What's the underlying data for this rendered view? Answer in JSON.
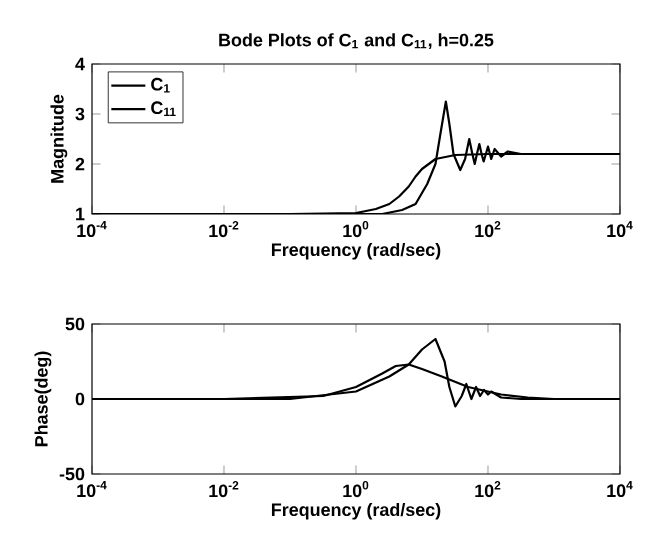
{
  "chart_data": [
    {
      "type": "line",
      "title": "Bode Plots of C$_{1}$ and C$_{11}$, h=0.25",
      "xlabel": "Frequency (rad/sec)",
      "ylabel": "Magnitude",
      "log": "x",
      "legend": "top left",
      "grid": false,
      "xlim": [
        0.0001,
        10000
      ],
      "ylim": [
        1,
        4
      ],
      "xticks": [
        {
          "value": 0.0001,
          "label": "10$^{-4}$"
        },
        {
          "value": 0.01,
          "label": "10$^{-2}$"
        },
        {
          "value": 1,
          "label": "10$^{0}$"
        },
        {
          "value": 100,
          "label": "10$^{2}$"
        },
        {
          "value": 10000,
          "label": "10$^{4}$"
        }
      ],
      "yticks": [
        1,
        2,
        3,
        4
      ],
      "series": [
        {
          "name": "C$_{1}$",
          "color": "#000000",
          "x": [
            0.0001,
            1,
            2.5,
            5,
            8,
            12,
            16,
            19,
            23,
            26,
            30,
            38,
            45,
            52,
            58,
            63,
            68,
            74,
            80,
            86,
            93,
            100,
            112,
            126,
            158,
            200,
            316,
            1000,
            10000
          ],
          "values": [
            1,
            1,
            1,
            1.08,
            1.2,
            1.6,
            2.0,
            2.6,
            3.25,
            2.8,
            2.2,
            1.88,
            2.1,
            2.5,
            2.2,
            2.0,
            2.2,
            2.4,
            2.2,
            2.05,
            2.2,
            2.35,
            2.1,
            2.3,
            2.15,
            2.25,
            2.2,
            2.2,
            2.2
          ]
        },
        {
          "name": "C$_{11}$",
          "color": "#000000",
          "x": [
            0.0001,
            0.1,
            1,
            2,
            3.2,
            4.5,
            6.3,
            8,
            10,
            16,
            32,
            100,
            1000,
            10000
          ],
          "values": [
            1,
            1,
            1.02,
            1.1,
            1.2,
            1.35,
            1.55,
            1.75,
            1.9,
            2.1,
            2.18,
            2.2,
            2.2,
            2.2
          ]
        }
      ]
    },
    {
      "type": "line",
      "xlabel": "Frequency (rad/sec)",
      "ylabel": "Phase(deg)",
      "log": "x",
      "legend": false,
      "grid": false,
      "xlim": [
        0.0001,
        10000
      ],
      "ylim": [
        -50,
        50
      ],
      "xticks": [
        {
          "value": 0.0001,
          "label": "10$^{-4}$"
        },
        {
          "value": 0.01,
          "label": "10$^{-2}$"
        },
        {
          "value": 1,
          "label": "10$^{0}$"
        },
        {
          "value": 100,
          "label": "10$^{2}$"
        },
        {
          "value": 10000,
          "label": "10$^{4}$"
        }
      ],
      "yticks": [
        -50,
        0,
        50
      ],
      "series": [
        {
          "color": "#000000",
          "x": [
            0.0001,
            0.1,
            1,
            3.2,
            6.3,
            10,
            16,
            22,
            26,
            32,
            40,
            47,
            56,
            66,
            76,
            87,
            100,
            112,
            158,
            316,
            10000
          ],
          "values": [
            0,
            0,
            5,
            15,
            23,
            33,
            40,
            25,
            8,
            -5,
            2,
            10,
            0,
            8,
            2,
            6,
            3,
            5,
            1,
            0,
            0
          ]
        },
        {
          "color": "#000000",
          "x": [
            0.0001,
            0.01,
            0.32,
            1,
            2.5,
            4,
            6.3,
            10,
            20,
            50,
            158,
            400,
            1000,
            10000
          ],
          "values": [
            0,
            0,
            2,
            8,
            17,
            22,
            23,
            20,
            15,
            8,
            3,
            1,
            0,
            0
          ]
        }
      ]
    }
  ]
}
